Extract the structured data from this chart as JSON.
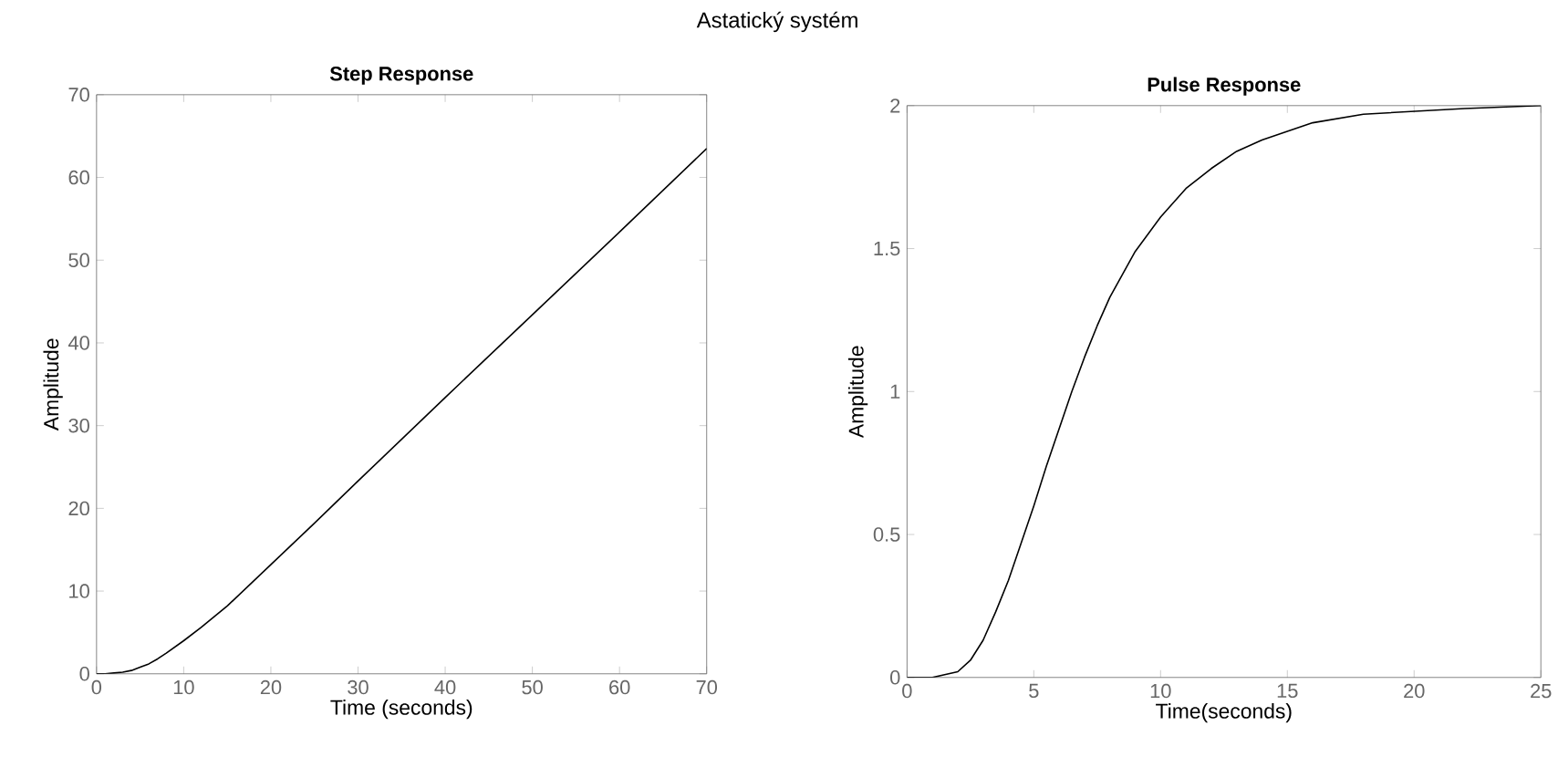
{
  "chart_data": [
    {
      "type": "line",
      "title": "Step Response",
      "xlabel": "Time (seconds)",
      "ylabel": "Amplitude",
      "annotations": [
        "Astatický systém"
      ],
      "xlim": [
        0,
        70
      ],
      "ylim": [
        0,
        70
      ],
      "xticks": [
        0,
        10,
        20,
        30,
        40,
        50,
        60,
        70
      ],
      "yticks": [
        0,
        10,
        20,
        30,
        40,
        50,
        60,
        70
      ],
      "grid": false,
      "series": [
        {
          "color": "#000000",
          "x": [
            0,
            1,
            2,
            3,
            4,
            5,
            6,
            7,
            8,
            10,
            12,
            15,
            20,
            25,
            30,
            40,
            50,
            60,
            70
          ],
          "values": [
            0,
            0,
            0.1,
            0.2,
            0.4,
            0.8,
            1.2,
            1.8,
            2.5,
            4,
            5.6,
            8.2,
            13.2,
            18.2,
            23.3,
            33.4,
            43.4,
            53.4,
            63.5
          ]
        }
      ]
    },
    {
      "type": "line",
      "title": "Pulse Response",
      "xlabel": "Time(seconds)",
      "ylabel": "Amplitude",
      "xlim": [
        0,
        25
      ],
      "ylim": [
        0,
        2
      ],
      "xticks": [
        0,
        5,
        10,
        15,
        20,
        25
      ],
      "yticks": [
        0,
        0.5,
        1,
        1.5,
        2
      ],
      "grid": false,
      "series": [
        {
          "color": "#000000",
          "x": [
            0,
            1,
            1.5,
            2,
            2.5,
            3,
            3.5,
            4,
            4.5,
            5,
            5.5,
            6,
            6.5,
            7,
            7.5,
            8,
            9,
            10,
            11,
            12,
            13,
            14,
            15,
            16,
            18,
            20,
            22,
            25
          ],
          "values": [
            0,
            0,
            0.01,
            0.02,
            0.06,
            0.13,
            0.23,
            0.34,
            0.47,
            0.6,
            0.74,
            0.87,
            1.0,
            1.12,
            1.23,
            1.33,
            1.49,
            1.61,
            1.71,
            1.78,
            1.84,
            1.88,
            1.91,
            1.94,
            1.97,
            1.98,
            1.99,
            2.0
          ]
        }
      ]
    }
  ]
}
